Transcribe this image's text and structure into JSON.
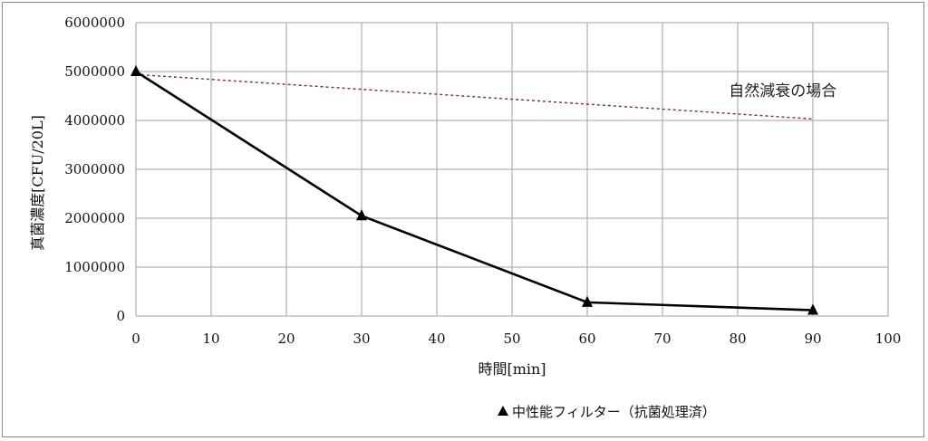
{
  "chart_data": {
    "type": "line",
    "xlabel": "時間[min]",
    "ylabel": "真菌濃度[CFU/20L]",
    "xlim": [
      0,
      100
    ],
    "ylim": [
      0,
      6000000
    ],
    "xticks": [
      "0",
      "10",
      "20",
      "30",
      "40",
      "50",
      "60",
      "70",
      "80",
      "90",
      "100"
    ],
    "yticks": [
      "0",
      "1000000",
      "2000000",
      "3000000",
      "4000000",
      "5000000",
      "6000000"
    ],
    "grid": true,
    "legend_position": "bottom",
    "series": [
      {
        "name": "中性能フィルター（抗菌処理済）",
        "marker": "triangle",
        "color": "#000000",
        "x": [
          0,
          30,
          60,
          90
        ],
        "y": [
          5000000,
          2050000,
          280000,
          120000
        ]
      },
      {
        "line_style": "dashed",
        "color": "#7a2e2e",
        "x": [
          0,
          90
        ],
        "y": [
          4940000,
          4030000
        ]
      }
    ],
    "annotations": [
      {
        "text": "自然減衰の場合",
        "x": 86,
        "y": 4500000
      }
    ]
  }
}
